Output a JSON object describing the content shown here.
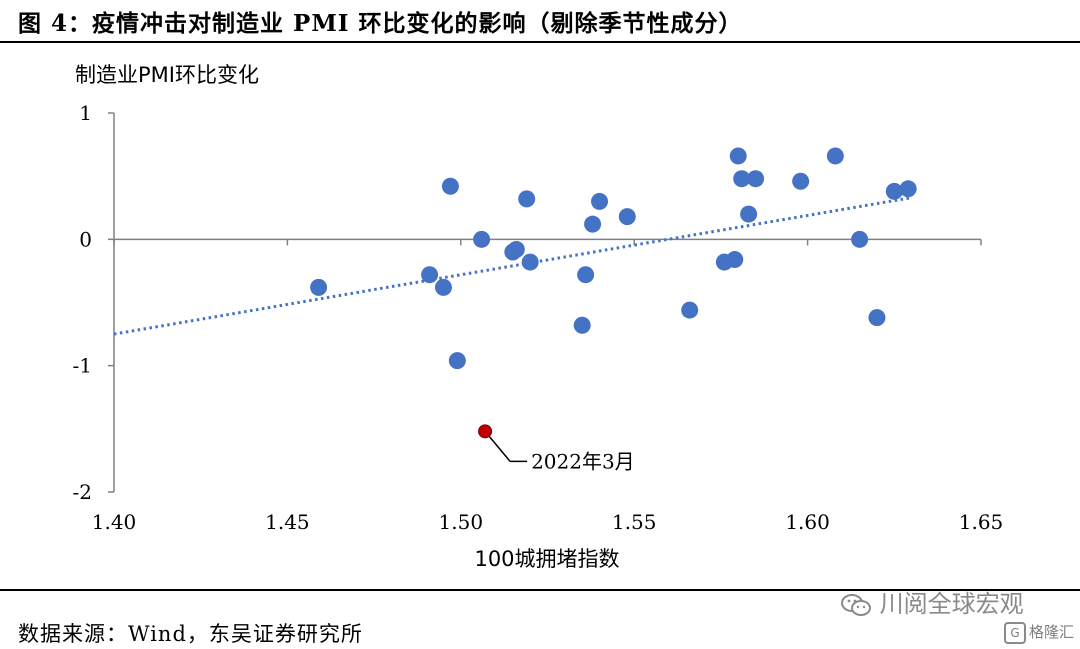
{
  "figure": {
    "title": "图 4：疫情冲击对制造业 PMI 环比变化的影响（剔除季节性成分）",
    "source": "数据来源：Wind，东吴证券研究所"
  },
  "watermarks": {
    "wechat": "川阅全球宏观",
    "wechat_icon": "wechat-icon",
    "brand": "格隆汇",
    "brand_icon": "gelonghui-logo-icon"
  },
  "chart_data": {
    "type": "scatter",
    "ylabel": "制造业PMI环比变化",
    "xlabel": "100城拥堵指数",
    "xlim": [
      1.4,
      1.65
    ],
    "ylim": [
      -2,
      1
    ],
    "xticks": [
      "1.40",
      "1.45",
      "1.50",
      "1.55",
      "1.60",
      "1.65"
    ],
    "yticks": [
      "1",
      "0",
      "-1",
      "-2"
    ],
    "point_color": "#4472C4",
    "highlight_color": "#C00000",
    "trendline_color": "#4472C4",
    "trendline": {
      "x": [
        1.4,
        1.63
      ],
      "y": [
        -0.75,
        0.33
      ]
    },
    "points": [
      {
        "x": 1.459,
        "y": -0.38
      },
      {
        "x": 1.491,
        "y": -0.28
      },
      {
        "x": 1.495,
        "y": -0.38
      },
      {
        "x": 1.497,
        "y": 0.42
      },
      {
        "x": 1.499,
        "y": -0.96
      },
      {
        "x": 1.506,
        "y": 0.0
      },
      {
        "x": 1.515,
        "y": -0.1
      },
      {
        "x": 1.516,
        "y": -0.08
      },
      {
        "x": 1.519,
        "y": 0.32
      },
      {
        "x": 1.52,
        "y": -0.18
      },
      {
        "x": 1.535,
        "y": -0.68
      },
      {
        "x": 1.536,
        "y": -0.28
      },
      {
        "x": 1.538,
        "y": 0.12
      },
      {
        "x": 1.54,
        "y": 0.3
      },
      {
        "x": 1.548,
        "y": 0.18
      },
      {
        "x": 1.566,
        "y": -0.56
      },
      {
        "x": 1.576,
        "y": -0.18
      },
      {
        "x": 1.579,
        "y": -0.16
      },
      {
        "x": 1.58,
        "y": 0.66
      },
      {
        "x": 1.581,
        "y": 0.48
      },
      {
        "x": 1.583,
        "y": 0.2
      },
      {
        "x": 1.585,
        "y": 0.48
      },
      {
        "x": 1.598,
        "y": 0.46
      },
      {
        "x": 1.608,
        "y": 0.66
      },
      {
        "x": 1.615,
        "y": 0.0
      },
      {
        "x": 1.62,
        "y": -0.62
      },
      {
        "x": 1.625,
        "y": 0.38
      },
      {
        "x": 1.629,
        "y": 0.4
      }
    ],
    "highlight": {
      "x": 1.507,
      "y": -1.52,
      "label": "2022年3月"
    }
  }
}
